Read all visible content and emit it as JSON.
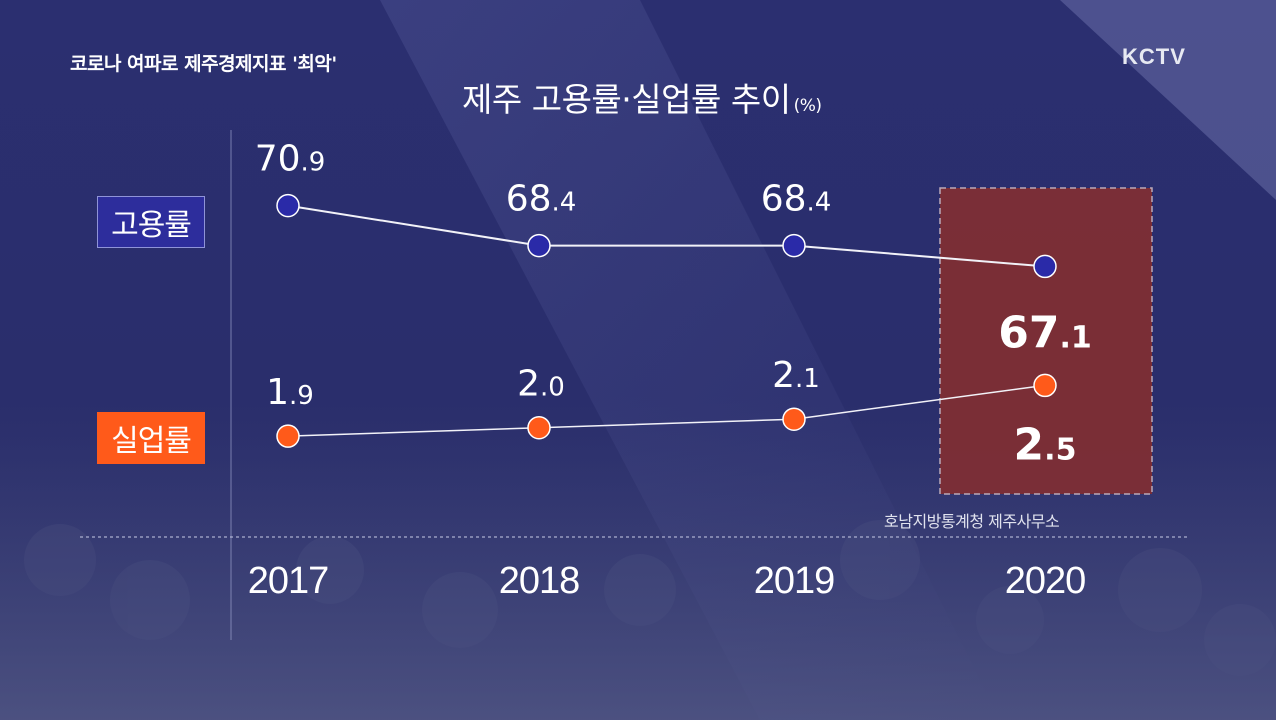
{
  "headline": "코로나 여파로 제주경제지표 '최악'",
  "logo": "KCTV",
  "source": "호남지방통계청 제주사무소",
  "colors": {
    "background": "#262a66",
    "employment": "#2a2aa8",
    "unemployment": "#ff5a1a",
    "highlight": "#7e2e34"
  },
  "chart_data": {
    "type": "line",
    "title": "제주 고용률·실업률 추이",
    "unit": "(%)",
    "categories": [
      "2017",
      "2018",
      "2019",
      "2020"
    ],
    "highlight_category": "2020",
    "series": [
      {
        "name": "고용률",
        "values": [
          70.9,
          68.4,
          68.4,
          67.1
        ],
        "labels": [
          {
            "int": "70",
            "dec": ".9"
          },
          {
            "int": "68",
            "dec": ".4"
          },
          {
            "int": "68",
            "dec": ".4"
          },
          {
            "int": "67",
            "dec": ".1"
          }
        ]
      },
      {
        "name": "실업률",
        "values": [
          1.9,
          2.0,
          2.1,
          2.5
        ],
        "labels": [
          {
            "int": "1",
            "dec": ".9"
          },
          {
            "int": "2",
            "dec": ".0"
          },
          {
            "int": "2",
            "dec": ".1"
          },
          {
            "int": "2",
            "dec": ".5"
          }
        ]
      }
    ]
  }
}
